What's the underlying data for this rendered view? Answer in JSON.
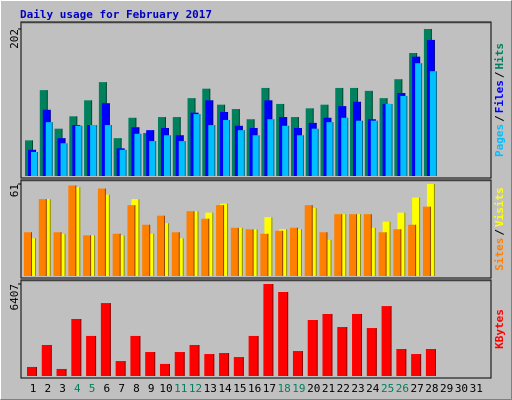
{
  "chart_data": [
    {
      "type": "bar",
      "title": "Daily usage for February 2017",
      "title_color": "#0000c0",
      "categories": [
        "1",
        "2",
        "3",
        "4",
        "5",
        "6",
        "7",
        "8",
        "9",
        "10",
        "11",
        "12",
        "13",
        "14",
        "15",
        "16",
        "17",
        "18",
        "19",
        "20",
        "21",
        "22",
        "23",
        "24",
        "25",
        "26",
        "27",
        "28",
        "29",
        "30",
        "31"
      ],
      "category_colors": [
        "#000000",
        "#000000",
        "#000000",
        "#00805c",
        "#00805c",
        "#000000",
        "#000000",
        "#000000",
        "#000000",
        "#000000",
        "#00805c",
        "#00805c",
        "#000000",
        "#000000",
        "#000000",
        "#000000",
        "#000000",
        "#00805c",
        "#00805c",
        "#000000",
        "#000000",
        "#000000",
        "#000000",
        "#000000",
        "#00805c",
        "#00805c",
        "#000000",
        "#000000",
        "#000000",
        "#000000",
        "#000000"
      ],
      "legend_separator": "/",
      "ylim": [
        0,
        202
      ],
      "yticks": [
        202
      ],
      "series": [
        {
          "name": "Hits",
          "color": "#00805c",
          "values": [
            49,
            118,
            65,
            82,
            104,
            129,
            52,
            80,
            59,
            81,
            81,
            107,
            120,
            98,
            92,
            78,
            121,
            99,
            81,
            93,
            98,
            121,
            121,
            117,
            107,
            133,
            169,
            202,
            null,
            null,
            null
          ]
        },
        {
          "name": "Files",
          "color": "#0000ff",
          "values": [
            36,
            91,
            52,
            70,
            70,
            100,
            38,
            67,
            63,
            66,
            56,
            87,
            104,
            88,
            69,
            66,
            104,
            81,
            66,
            73,
            80,
            96,
            102,
            78,
            99,
            114,
            164,
            187,
            null,
            null,
            null
          ]
        },
        {
          "name": "Pages",
          "color": "#00c0ff",
          "values": [
            33,
            74,
            45,
            69,
            70,
            70,
            36,
            58,
            48,
            56,
            48,
            85,
            70,
            77,
            63,
            56,
            78,
            69,
            56,
            65,
            74,
            80,
            76,
            76,
            99,
            110,
            155,
            144,
            null,
            null,
            null
          ]
        }
      ]
    },
    {
      "type": "bar",
      "legend_separator": "/",
      "ylim": [
        0,
        61
      ],
      "yticks": [
        61
      ],
      "series": [
        {
          "name": "Visits",
          "color": "#ffff00",
          "values": [
            25,
            51,
            28,
            59,
            27,
            54,
            27,
            51,
            28,
            35,
            25,
            43,
            42,
            48,
            32,
            31,
            39,
            31,
            31,
            45,
            24,
            41,
            41,
            32,
            36,
            42,
            52,
            61,
            null,
            null,
            null
          ]
        },
        {
          "name": "Sites",
          "color": "#ff8000",
          "values": [
            29,
            51,
            29,
            60,
            27,
            58,
            28,
            47,
            34,
            40,
            29,
            43,
            38,
            47,
            32,
            31,
            28,
            30,
            32,
            47,
            29,
            41,
            41,
            41,
            29,
            31,
            34,
            46,
            null,
            null,
            null
          ]
        }
      ]
    },
    {
      "type": "bar",
      "ylim": [
        0,
        6407
      ],
      "yticks": [
        6407
      ],
      "series": [
        {
          "name": "KBytes",
          "color": "#ff0000",
          "values": [
            630,
            2160,
            490,
            3970,
            2790,
            5080,
            1040,
            2790,
            1670,
            840,
            1670,
            2160,
            1530,
            1600,
            1320,
            2790,
            6407,
            5850,
            1740,
            3900,
            4320,
            3410,
            4320,
            3340,
            4870,
            1880,
            1530,
            1880,
            null,
            null,
            null
          ]
        }
      ]
    }
  ]
}
